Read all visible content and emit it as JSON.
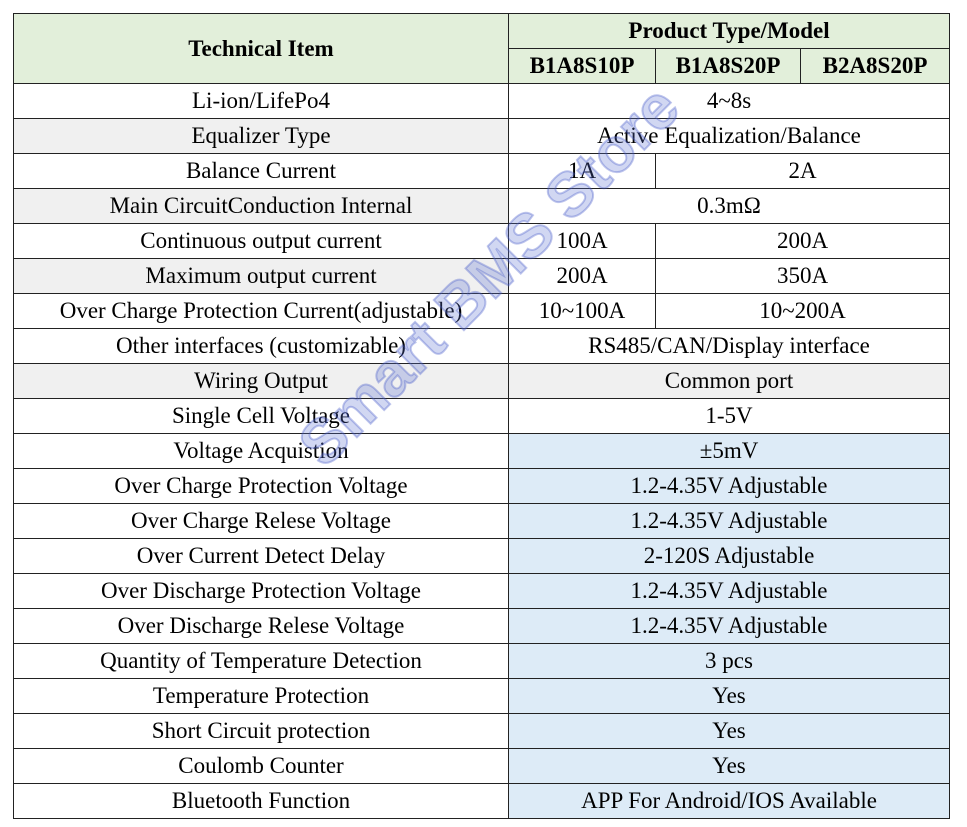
{
  "header": {
    "technical_item": "Technical Item",
    "product_type": "Product Type/Model",
    "models": [
      "B1A8S10P",
      "B1A8S20P",
      "B2A8S20P"
    ]
  },
  "rows": [
    {
      "item": "Li-ion/LifePo4",
      "values": [
        "4~8s"
      ]
    },
    {
      "item": "Equalizer Type",
      "values": [
        "Active Equalization/Balance"
      ]
    },
    {
      "item": "Balance Current",
      "values": [
        "1A",
        "2A"
      ]
    },
    {
      "item": "Main CircuitConduction Internal",
      "values": [
        "0.3mΩ"
      ]
    },
    {
      "item": "Continuous output current",
      "values": [
        "100A",
        "200A"
      ]
    },
    {
      "item": "Maximum output current",
      "values": [
        "200A",
        "350A"
      ]
    },
    {
      "item": "Over Charge Protection Current(adjustable)",
      "values": [
        "10~100A",
        "10~200A"
      ]
    },
    {
      "item": "Other interfaces (customizable)",
      "values": [
        "RS485/CAN/Display interface"
      ]
    },
    {
      "item": "Wiring Output",
      "values": [
        "Common port"
      ]
    },
    {
      "item": "Single Cell Voltage",
      "values": [
        "1-5V"
      ]
    },
    {
      "item": "Voltage Acquistion",
      "values": [
        "±5mV"
      ]
    },
    {
      "item": "Over Charge Protection Voltage",
      "values": [
        "1.2-4.35V Adjustable"
      ]
    },
    {
      "item": "Over Charge Relese Voltage",
      "values": [
        "1.2-4.35V Adjustable"
      ]
    },
    {
      "item": "Over Current Detect Delay",
      "values": [
        "2-120S Adjustable"
      ]
    },
    {
      "item": "Over Discharge Protection Voltage",
      "values": [
        "1.2-4.35V Adjustable"
      ]
    },
    {
      "item": "Over Discharge Relese Voltage",
      "values": [
        "1.2-4.35V Adjustable"
      ]
    },
    {
      "item": "Quantity of Temperature Detection",
      "values": [
        "3 pcs"
      ]
    },
    {
      "item": "Temperature  Protection",
      "values": [
        "Yes"
      ]
    },
    {
      "item": "Short Circuit protection",
      "values": [
        "Yes"
      ]
    },
    {
      "item": "Coulomb Counter",
      "values": [
        "Yes"
      ]
    },
    {
      "item": "Bluetooth Function",
      "values": [
        "APP For Android/IOS Available"
      ]
    }
  ],
  "watermark": "Smart BMS Store"
}
